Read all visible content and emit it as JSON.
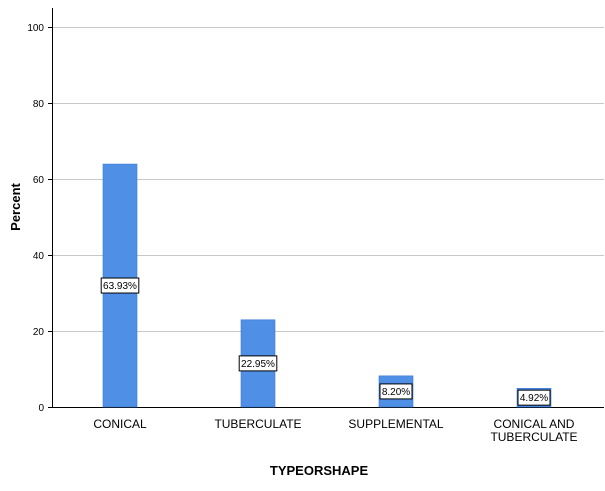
{
  "chart_data": {
    "type": "bar",
    "title": "",
    "xlabel": "TYPEORSHAPE",
    "ylabel": "Percent",
    "ylim": [
      0,
      105
    ],
    "yticks": [
      0,
      20,
      40,
      60,
      80,
      100
    ],
    "grid": true,
    "categories": [
      [
        "CONICAL"
      ],
      [
        "TUBERCULATE"
      ],
      [
        "SUPPLEMENTAL"
      ],
      [
        "CONICAL AND",
        "TUBERCULATE"
      ]
    ],
    "values": [
      63.93,
      22.95,
      8.2,
      4.92
    ],
    "data_labels": [
      "63.93%",
      "22.95%",
      "8.20%",
      "4.92%"
    ],
    "bar_color": "#4f8fe6",
    "bar_edge_color": "#3a78d0",
    "grid_color": "#c8c8c8",
    "axis_color": "#000000"
  }
}
